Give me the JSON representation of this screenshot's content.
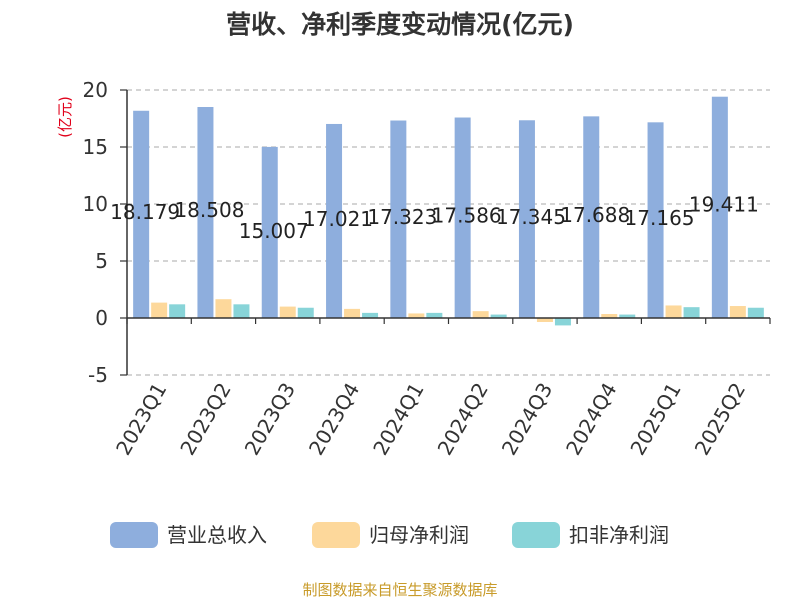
{
  "chart_data": {
    "type": "bar",
    "title": "营收、净利季度变动情况(亿元)",
    "ylabel": "(亿元)",
    "ylim": [
      -5,
      20
    ],
    "yticks": [
      20,
      15,
      10,
      5,
      0,
      -5
    ],
    "grid": true,
    "legend_position": "bottom",
    "categories": [
      "2023Q1",
      "2023Q2",
      "2023Q3",
      "2023Q4",
      "2024Q1",
      "2024Q2",
      "2024Q3",
      "2024Q4",
      "2025Q1",
      "2025Q2"
    ],
    "series": [
      {
        "name": "营业总收入",
        "color": "#8eaedd",
        "values": [
          18.179,
          18.508,
          15.007,
          17.021,
          17.323,
          17.586,
          17.345,
          17.688,
          17.165,
          19.411
        ],
        "labels": [
          "18.179",
          "18.508",
          "15.007",
          "17.021",
          "17.323",
          "17.586",
          "17.345",
          "17.688",
          "17.165",
          "19.411"
        ]
      },
      {
        "name": "归母净利润",
        "color": "#fdd89b",
        "values": [
          1.35,
          1.65,
          1.0,
          0.8,
          0.4,
          0.6,
          -0.35,
          0.35,
          1.1,
          1.05
        ]
      },
      {
        "name": "扣非净利润",
        "color": "#88d4d8",
        "values": [
          1.2,
          1.2,
          0.9,
          0.45,
          0.45,
          0.3,
          -0.65,
          0.3,
          0.95,
          0.9
        ]
      }
    ]
  },
  "footer": {
    "source": "制图数据来自恒生聚源数据库"
  }
}
